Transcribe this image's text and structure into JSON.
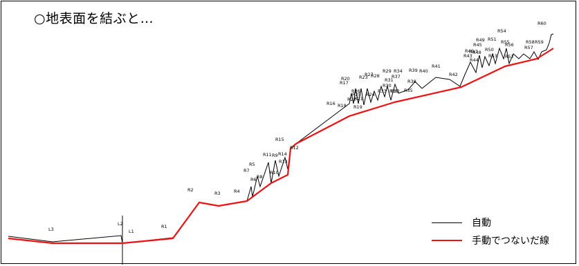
{
  "title": "○地表面を結ぶと…",
  "colors": {
    "auto": "#000000",
    "manual": "#ee1111",
    "frame": "#000000"
  },
  "legend": {
    "auto_label": "自動",
    "manual_label": "手動でつないだ線"
  },
  "labels": [
    "L3",
    "L2",
    "L1",
    "R1",
    "R2",
    "R3",
    "R4",
    "R5",
    "R6",
    "R7",
    "R8",
    "R9",
    "R10",
    "R11",
    "R12",
    "R13",
    "R14",
    "R15",
    "R16",
    "R17",
    "R18",
    "R19",
    "R20",
    "R21",
    "R22",
    "R23",
    "R24",
    "R25",
    "R26",
    "R27",
    "R28",
    "R29",
    "R30",
    "R31",
    "R32",
    "R33",
    "R34",
    "R35",
    "R36",
    "R37",
    "R38",
    "R39",
    "R40",
    "R41",
    "R42",
    "R43",
    "R44",
    "R45",
    "R46",
    "R47",
    "R48",
    "R49",
    "R50",
    "R51",
    "R52",
    "R53",
    "R54",
    "R55",
    "R56",
    "R57",
    "R58",
    "R59",
    "R60"
  ]
}
